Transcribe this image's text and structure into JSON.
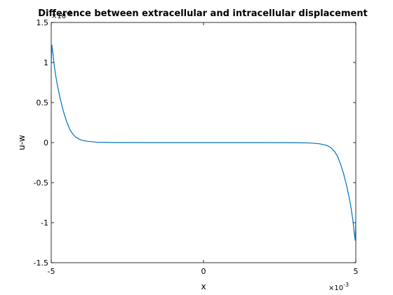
{
  "chart_data": {
    "type": "line",
    "title": "Difference between extracellular and intracellular displacement",
    "xlabel": "x",
    "ylabel": "u-w",
    "x_multiplier": {
      "base": "×10",
      "exponent": "-3"
    },
    "y_multiplier": {
      "base": "×10",
      "exponent": "-6"
    },
    "xlim": [
      -5,
      5
    ],
    "ylim": [
      -1.5,
      1.5
    ],
    "x_ticks": [
      -5,
      0,
      5
    ],
    "x_tick_labels": [
      "-5",
      "0",
      "5"
    ],
    "y_ticks": [
      -1.5,
      -1,
      -0.5,
      0,
      0.5,
      1,
      1.5
    ],
    "y_tick_labels": [
      "-1.5",
      "-1",
      "-0.5",
      "0",
      "0.5",
      "1",
      "1.5"
    ],
    "grid": false,
    "line_color": "#0072bd",
    "series": [
      {
        "x": [
          -5,
          -4.98,
          -4.95,
          -4.9,
          -4.85,
          -4.8,
          -4.7,
          -4.6,
          -4.5,
          -4.4,
          -4.3,
          -4.2,
          -4.1,
          -4,
          -3.8,
          -3.5,
          -3,
          -2,
          -1,
          0,
          1,
          2,
          3,
          3.5,
          3.8,
          4,
          4.1,
          4.2,
          4.3,
          4.4,
          4.5,
          4.6,
          4.7,
          4.8,
          4.85,
          4.9,
          4.95,
          4.98,
          5
        ],
        "y": [
          0.95,
          1.22,
          1.13,
          0.96,
          0.83,
          0.72,
          0.54,
          0.39,
          0.27,
          0.17,
          0.11,
          0.07,
          0.045,
          0.03,
          0.015,
          0.005,
          0.001,
          0,
          0,
          0,
          0,
          0,
          -0.001,
          -0.005,
          -0.015,
          -0.03,
          -0.045,
          -0.07,
          -0.11,
          -0.17,
          -0.27,
          -0.39,
          -0.54,
          -0.72,
          -0.83,
          -0.96,
          -1.13,
          -1.22,
          -0.95
        ]
      }
    ]
  }
}
